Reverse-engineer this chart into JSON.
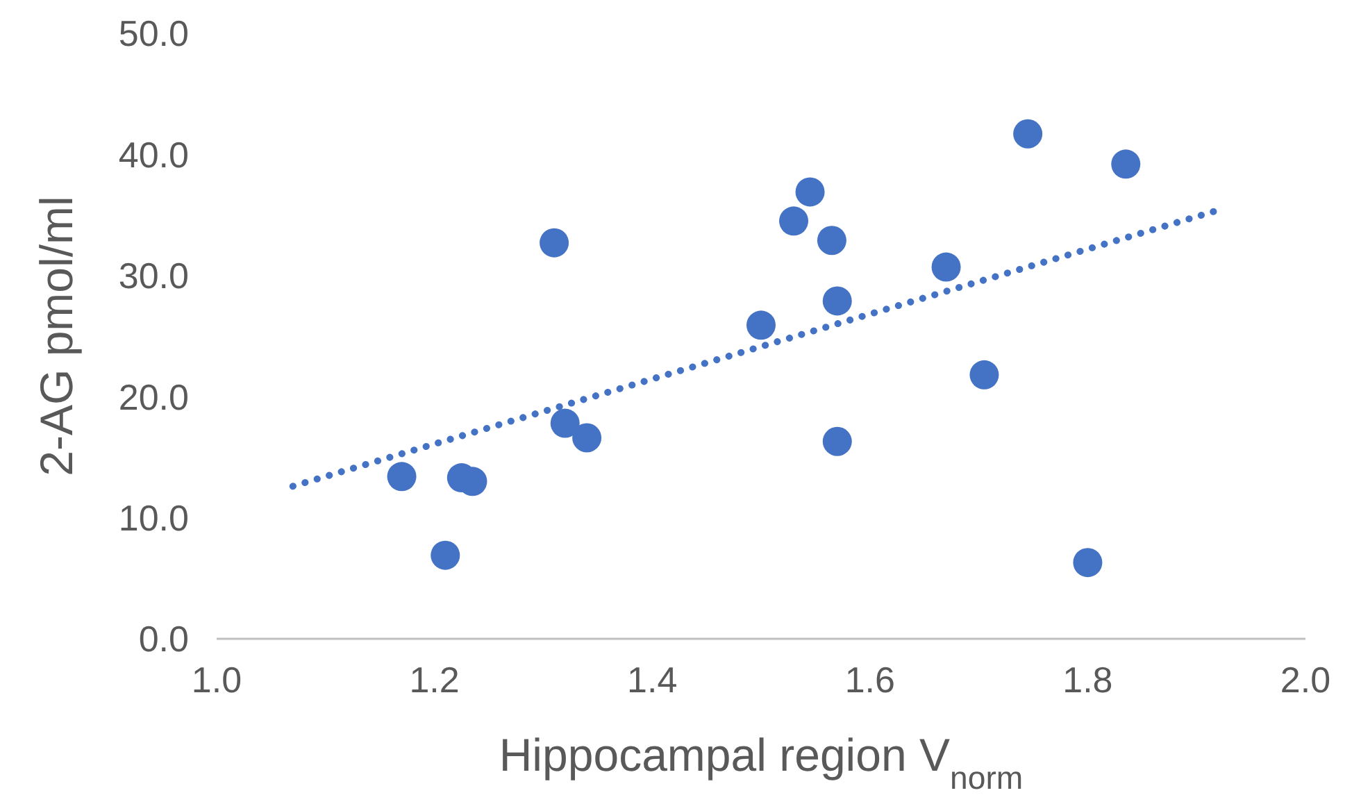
{
  "chart_data": {
    "type": "scatter",
    "xlabel": "Hippocampal region V$_{norm}$",
    "ylabel": "2-AG pmol/ml",
    "x": [
      1.17,
      1.21,
      1.225,
      1.235,
      1.31,
      1.32,
      1.34,
      1.5,
      1.53,
      1.545,
      1.565,
      1.57,
      1.57,
      1.67,
      1.705,
      1.745,
      1.8,
      1.835
    ],
    "series": [
      {
        "color": "#4472c4",
        "marker": "circle",
        "values": [
          13.4,
          6.9,
          13.3,
          13.0,
          32.7,
          17.8,
          16.6,
          25.9,
          34.5,
          36.9,
          32.9,
          27.9,
          16.3,
          30.7,
          21.8,
          41.7,
          6.3,
          39.2
        ]
      },
      {
        "type": "line",
        "color": "#4472c4",
        "marker": "none",
        "line_style": "dotted",
        "x": [
          1.07,
          1.92
        ],
        "values": [
          12.6,
          35.4
        ]
      }
    ],
    "xlim": [
      1.0,
      2.0
    ],
    "xticks": [
      {
        "value": 1.0,
        "label": "1.0"
      },
      {
        "value": 1.2,
        "label": "1.2"
      },
      {
        "value": 1.4,
        "label": "1.4"
      },
      {
        "value": 1.6,
        "label": "1.6"
      },
      {
        "value": 1.8,
        "label": "1.8"
      },
      {
        "value": 2.0,
        "label": "2.0"
      }
    ],
    "ylim": [
      0,
      50
    ],
    "yticks": [
      {
        "value": 0,
        "label": "0.0"
      },
      {
        "value": 10,
        "label": "10.0"
      },
      {
        "value": 20,
        "label": "20.0"
      },
      {
        "value": 30,
        "label": "30.0"
      },
      {
        "value": 40,
        "label": "40.0"
      },
      {
        "value": 50,
        "label": "50.0"
      }
    ],
    "grid": false,
    "legend": false
  }
}
